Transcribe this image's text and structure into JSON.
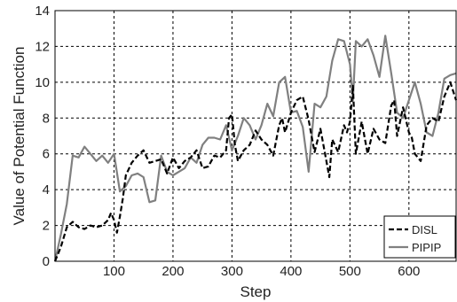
{
  "chart_data": {
    "type": "line",
    "xlabel": "Step",
    "ylabel": "Value of Potential Function",
    "xlim": [
      0,
      680
    ],
    "ylim": [
      0,
      14
    ],
    "xticks": [
      100,
      200,
      300,
      400,
      500,
      600
    ],
    "yticks": [
      0,
      2,
      4,
      6,
      8,
      10,
      12,
      14
    ],
    "grid": true,
    "legend_position": "bottom-right",
    "series": [
      {
        "name": "DISL",
        "color": "#000000",
        "style": "dashed",
        "x": [
          0,
          10,
          20,
          30,
          40,
          50,
          60,
          70,
          80,
          90,
          95,
          100,
          105,
          110,
          115,
          120,
          130,
          140,
          150,
          160,
          170,
          180,
          190,
          200,
          210,
          220,
          230,
          240,
          250,
          260,
          270,
          280,
          290,
          295,
          300,
          305,
          310,
          320,
          330,
          340,
          350,
          360,
          370,
          380,
          385,
          390,
          400,
          410,
          420,
          430,
          440,
          450,
          460,
          465,
          470,
          480,
          490,
          495,
          500,
          505,
          510,
          520,
          530,
          540,
          550,
          560,
          570,
          575,
          580,
          590,
          600,
          605,
          610,
          620,
          630,
          640,
          650,
          660,
          670,
          680
        ],
        "y": [
          0,
          0.8,
          1.9,
          2.2,
          1.9,
          1.8,
          2.0,
          1.9,
          2.0,
          2.3,
          2.7,
          2.3,
          1.6,
          2.5,
          3.5,
          4.8,
          5.5,
          5.9,
          6.2,
          5.5,
          5.6,
          5.7,
          4.9,
          5.8,
          5.2,
          5.6,
          5.8,
          6.2,
          5.2,
          5.3,
          5.9,
          5.8,
          6.2,
          8.0,
          8.2,
          6.5,
          5.6,
          6.2,
          6.5,
          7.3,
          6.8,
          6.5,
          5.9,
          7.6,
          8.0,
          7.2,
          8.3,
          9.0,
          9.2,
          7.9,
          6.1,
          7.4,
          5.6,
          4.7,
          6.8,
          6.1,
          7.6,
          7.2,
          7.8,
          9.8,
          6.0,
          7.8,
          6.0,
          7.4,
          6.8,
          6.6,
          8.7,
          9.0,
          7.0,
          8.6,
          7.2,
          6.9,
          6.0,
          5.6,
          7.6,
          8.0,
          7.8,
          9.2,
          10.0,
          9.0
        ]
      },
      {
        "name": "PIPIP",
        "color": "#808080",
        "style": "solid",
        "x": [
          0,
          10,
          20,
          30,
          40,
          50,
          60,
          70,
          80,
          90,
          100,
          110,
          120,
          130,
          140,
          150,
          160,
          170,
          180,
          190,
          200,
          210,
          220,
          230,
          240,
          250,
          260,
          270,
          280,
          290,
          300,
          310,
          320,
          330,
          340,
          350,
          360,
          370,
          380,
          390,
          400,
          410,
          420,
          430,
          440,
          450,
          460,
          470,
          480,
          490,
          500,
          505,
          510,
          520,
          530,
          540,
          550,
          560,
          570,
          580,
          590,
          600,
          610,
          620,
          630,
          640,
          650,
          660,
          670,
          680
        ],
        "y": [
          0,
          1.5,
          3.2,
          5.9,
          5.8,
          6.4,
          6.0,
          5.6,
          5.9,
          5.5,
          6.0,
          3.9,
          4.2,
          4.8,
          4.9,
          4.7,
          3.3,
          3.4,
          5.9,
          5.0,
          4.8,
          5.0,
          5.2,
          5.8,
          5.5,
          6.5,
          6.9,
          6.9,
          6.8,
          7.6,
          6.2,
          7.0,
          8.0,
          7.6,
          6.8,
          7.6,
          8.8,
          8.1,
          10.0,
          10.3,
          8.3,
          8.4,
          7.5,
          5.0,
          8.8,
          8.6,
          9.2,
          11.2,
          12.4,
          12.3,
          11.0,
          9.0,
          12.3,
          12.0,
          12.4,
          11.5,
          10.3,
          12.6,
          10.5,
          8.3,
          8.0,
          9.0,
          10.0,
          8.8,
          7.2,
          7.0,
          8.3,
          10.2,
          10.4,
          10.5
        ]
      }
    ]
  }
}
